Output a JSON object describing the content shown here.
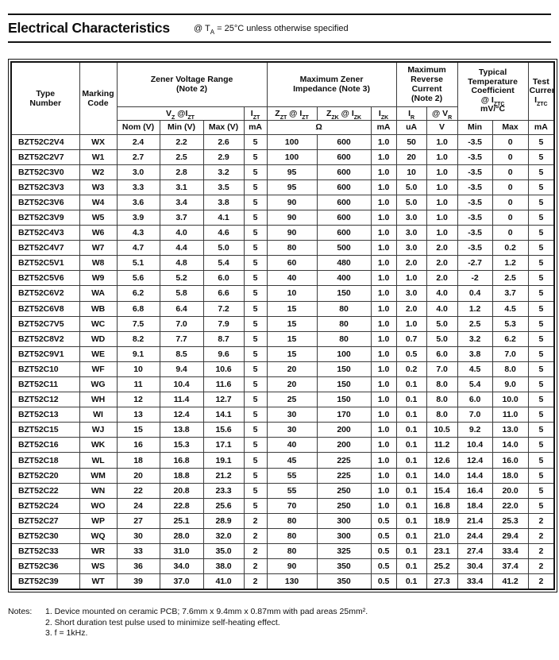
{
  "page": {
    "title": "Electrical Characteristics",
    "condition": {
      "pre": "@ T",
      "sub": "A",
      "post": " = 25°C unless otherwise specified"
    }
  },
  "table": {
    "groups": {
      "type_number": "Type\nNumber",
      "marking_code": "Marking\nCode",
      "zener_voltage_range": "Zener Voltage Range\n(Note 2)",
      "max_zener_impedance": "Maximum Zener\nImpedance (Note 3)",
      "max_reverse_current": "Maximum\nReverse\nCurrent\n(Note 2)",
      "temp_coefficient_lines": "Typical\nTemperature\nCoefficient",
      "temp_coefficient_at": {
        "pre": "@ I",
        "sub": "ZTC"
      },
      "temp_coefficient_unit": "mV/°C",
      "test_current_lines": "Test\nCurrent",
      "test_current_symbol": {
        "pre": "I",
        "sub": "ZTC"
      }
    },
    "subheaders": {
      "vz": {
        "pre": "V",
        "sub": "Z",
        "mid": " @I",
        "sub2": "ZT"
      },
      "izt": {
        "pre": "I",
        "sub": "ZT"
      },
      "zzt": {
        "pre": "Z",
        "sub": "ZT",
        "mid": " @ I",
        "sub2": "ZT"
      },
      "zzk": {
        "pre": "Z",
        "sub": "ZK",
        "mid": " @ I",
        "sub2": "ZK"
      },
      "izk": {
        "pre": "I",
        "sub": "ZK"
      },
      "ir": {
        "pre": "I",
        "sub": "R"
      },
      "vr": {
        "pre": "@ V",
        "sub": "R"
      }
    },
    "units": {
      "nom": "Nom (V)",
      "min": "Min (V)",
      "max": "Max (V)",
      "izt_ma": "mA",
      "ohm": "Ω",
      "izk_ma": "mA",
      "ir_ua": "uA",
      "vr_v": "V",
      "tc_min": "Min",
      "tc_max": "Max",
      "iztc_ma": "mA"
    },
    "col_names": [
      "type-number-cell",
      "marking-code-cell",
      "vz-nom-cell",
      "vz-min-cell",
      "vz-max-cell",
      "izt-cell",
      "zzt-cell",
      "zzk-cell",
      "izk-cell",
      "ir-cell",
      "vr-cell",
      "tc-min-cell",
      "tc-max-cell",
      "iztc-cell"
    ],
    "rows": [
      [
        "BZT52C2V4",
        "WX",
        "2.4",
        "2.2",
        "2.6",
        "5",
        "100",
        "600",
        "1.0",
        "50",
        "1.0",
        "-3.5",
        "0",
        "5"
      ],
      [
        "BZT52C2V7",
        "W1",
        "2.7",
        "2.5",
        "2.9",
        "5",
        "100",
        "600",
        "1.0",
        "20",
        "1.0",
        "-3.5",
        "0",
        "5"
      ],
      [
        "BZT52C3V0",
        "W2",
        "3.0",
        "2.8",
        "3.2",
        "5",
        "95",
        "600",
        "1.0",
        "10",
        "1.0",
        "-3.5",
        "0",
        "5"
      ],
      [
        "BZT52C3V3",
        "W3",
        "3.3",
        "3.1",
        "3.5",
        "5",
        "95",
        "600",
        "1.0",
        "5.0",
        "1.0",
        "-3.5",
        "0",
        "5"
      ],
      [
        "BZT52C3V6",
        "W4",
        "3.6",
        "3.4",
        "3.8",
        "5",
        "90",
        "600",
        "1.0",
        "5.0",
        "1.0",
        "-3.5",
        "0",
        "5"
      ],
      [
        "BZT52C3V9",
        "W5",
        "3.9",
        "3.7",
        "4.1",
        "5",
        "90",
        "600",
        "1.0",
        "3.0",
        "1.0",
        "-3.5",
        "0",
        "5"
      ],
      [
        "BZT52C4V3",
        "W6",
        "4.3",
        "4.0",
        "4.6",
        "5",
        "90",
        "600",
        "1.0",
        "3.0",
        "1.0",
        "-3.5",
        "0",
        "5"
      ],
      [
        "BZT52C4V7",
        "W7",
        "4.7",
        "4.4",
        "5.0",
        "5",
        "80",
        "500",
        "1.0",
        "3.0",
        "2.0",
        "-3.5",
        "0.2",
        "5"
      ],
      [
        "BZT52C5V1",
        "W8",
        "5.1",
        "4.8",
        "5.4",
        "5",
        "60",
        "480",
        "1.0",
        "2.0",
        "2.0",
        "-2.7",
        "1.2",
        "5"
      ],
      [
        "BZT52C5V6",
        "W9",
        "5.6",
        "5.2",
        "6.0",
        "5",
        "40",
        "400",
        "1.0",
        "1.0",
        "2.0",
        "-2",
        "2.5",
        "5"
      ],
      [
        "BZT52C6V2",
        "WA",
        "6.2",
        "5.8",
        "6.6",
        "5",
        "10",
        "150",
        "1.0",
        "3.0",
        "4.0",
        "0.4",
        "3.7",
        "5"
      ],
      [
        "BZT52C6V8",
        "WB",
        "6.8",
        "6.4",
        "7.2",
        "5",
        "15",
        "80",
        "1.0",
        "2.0",
        "4.0",
        "1.2",
        "4.5",
        "5"
      ],
      [
        "BZT52C7V5",
        "WC",
        "7.5",
        "7.0",
        "7.9",
        "5",
        "15",
        "80",
        "1.0",
        "1.0",
        "5.0",
        "2.5",
        "5.3",
        "5"
      ],
      [
        "BZT52C8V2",
        "WD",
        "8.2",
        "7.7",
        "8.7",
        "5",
        "15",
        "80",
        "1.0",
        "0.7",
        "5.0",
        "3.2",
        "6.2",
        "5"
      ],
      [
        "BZT52C9V1",
        "WE",
        "9.1",
        "8.5",
        "9.6",
        "5",
        "15",
        "100",
        "1.0",
        "0.5",
        "6.0",
        "3.8",
        "7.0",
        "5"
      ],
      [
        "BZT52C10",
        "WF",
        "10",
        "9.4",
        "10.6",
        "5",
        "20",
        "150",
        "1.0",
        "0.2",
        "7.0",
        "4.5",
        "8.0",
        "5"
      ],
      [
        "BZT52C11",
        "WG",
        "11",
        "10.4",
        "11.6",
        "5",
        "20",
        "150",
        "1.0",
        "0.1",
        "8.0",
        "5.4",
        "9.0",
        "5"
      ],
      [
        "BZT52C12",
        "WH",
        "12",
        "11.4",
        "12.7",
        "5",
        "25",
        "150",
        "1.0",
        "0.1",
        "8.0",
        "6.0",
        "10.0",
        "5"
      ],
      [
        "BZT52C13",
        "WI",
        "13",
        "12.4",
        "14.1",
        "5",
        "30",
        "170",
        "1.0",
        "0.1",
        "8.0",
        "7.0",
        "11.0",
        "5"
      ],
      [
        "BZT52C15",
        "WJ",
        "15",
        "13.8",
        "15.6",
        "5",
        "30",
        "200",
        "1.0",
        "0.1",
        "10.5",
        "9.2",
        "13.0",
        "5"
      ],
      [
        "BZT52C16",
        "WK",
        "16",
        "15.3",
        "17.1",
        "5",
        "40",
        "200",
        "1.0",
        "0.1",
        "11.2",
        "10.4",
        "14.0",
        "5"
      ],
      [
        "BZT52C18",
        "WL",
        "18",
        "16.8",
        "19.1",
        "5",
        "45",
        "225",
        "1.0",
        "0.1",
        "12.6",
        "12.4",
        "16.0",
        "5"
      ],
      [
        "BZT52C20",
        "WM",
        "20",
        "18.8",
        "21.2",
        "5",
        "55",
        "225",
        "1.0",
        "0.1",
        "14.0",
        "14.4",
        "18.0",
        "5"
      ],
      [
        "BZT52C22",
        "WN",
        "22",
        "20.8",
        "23.3",
        "5",
        "55",
        "250",
        "1.0",
        "0.1",
        "15.4",
        "16.4",
        "20.0",
        "5"
      ],
      [
        "BZT52C24",
        "WO",
        "24",
        "22.8",
        "25.6",
        "5",
        "70",
        "250",
        "1.0",
        "0.1",
        "16.8",
        "18.4",
        "22.0",
        "5"
      ],
      [
        "BZT52C27",
        "WP",
        "27",
        "25.1",
        "28.9",
        "2",
        "80",
        "300",
        "0.5",
        "0.1",
        "18.9",
        "21.4",
        "25.3",
        "2"
      ],
      [
        "BZT52C30",
        "WQ",
        "30",
        "28.0",
        "32.0",
        "2",
        "80",
        "300",
        "0.5",
        "0.1",
        "21.0",
        "24.4",
        "29.4",
        "2"
      ],
      [
        "BZT52C33",
        "WR",
        "33",
        "31.0",
        "35.0",
        "2",
        "80",
        "325",
        "0.5",
        "0.1",
        "23.1",
        "27.4",
        "33.4",
        "2"
      ],
      [
        "BZT52C36",
        "WS",
        "36",
        "34.0",
        "38.0",
        "2",
        "90",
        "350",
        "0.5",
        "0.1",
        "25.2",
        "30.4",
        "37.4",
        "2"
      ],
      [
        "BZT52C39",
        "WT",
        "39",
        "37.0",
        "41.0",
        "2",
        "130",
        "350",
        "0.5",
        "0.1",
        "27.3",
        "33.4",
        "41.2",
        "2"
      ]
    ]
  },
  "notes": {
    "label": "Notes:",
    "items": [
      "1. Device mounted on ceramic PCB; 7.6mm x 9.4mm x 0.87mm with pad areas 25mm².",
      "2. Short duration test pulse used to minimize self-heating effect.",
      "3. f = 1kHz."
    ]
  }
}
